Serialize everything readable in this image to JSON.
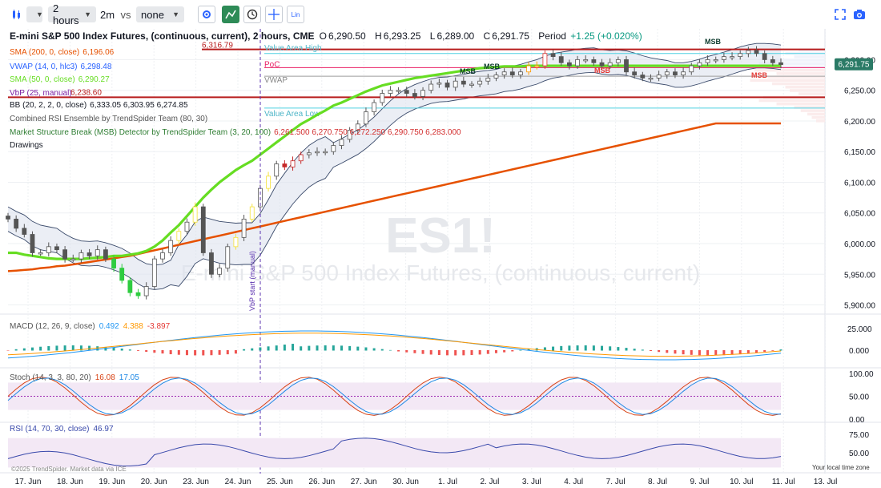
{
  "toolbar": {
    "interval": "2 hours",
    "timeframe": "2m",
    "vs_label": "vs",
    "compare": "none",
    "lin_label": "Lin"
  },
  "title": "E-mini S&P 500 Index Futures, (continuous, current), 2 hours, CME",
  "ohlc": {
    "o_label": "O",
    "o": "6,290.50",
    "h_label": "H",
    "h": "6,293.25",
    "l_label": "L",
    "l": "6,289.00",
    "c_label": "C",
    "c": "6,291.75",
    "period_label": "Period",
    "period": "+1.25 (+0.020%)"
  },
  "indicators": [
    {
      "label": "SMA (200, 0, close)",
      "value": "6,196.06",
      "color": "#e65100"
    },
    {
      "label": "VWAP (14, 0, hlc3)",
      "value": "6,298.48",
      "color": "#2962ff"
    },
    {
      "label": "SMA (50, 0, close)",
      "value": "6,290.27",
      "color": "#66dd22"
    },
    {
      "label": "VbP (25, manual)",
      "value": "",
      "color": "#7b1fa2"
    },
    {
      "label": "BB (20, 2, 2, 0, close)",
      "value": "6,333.05  6,303.95  6,274.85",
      "color": "#131722"
    },
    {
      "label": "Combined RSI Ensemble by TrendSpider Team (80, 30)",
      "value": "",
      "color": "#555"
    },
    {
      "label": "Market Structure Break (MSB) Detector by TrendSpider Team (3, 20, 100)",
      "value": "6,261.500  6,270.750  6,272.250  6,290.750  6,283.000",
      "color": "#2e7d32",
      "value_color": "#d32f2f"
    },
    {
      "label": "Drawings",
      "value": "",
      "color": "#131722"
    }
  ],
  "watermark": {
    "ticker": "ES1!",
    "name": "E-mini S&P 500 Index Futures, (continuous, current)"
  },
  "level_labels": {
    "top": "6,316.79",
    "lower": "6,238.60",
    "high": "Value Area High",
    "poc": "PoC",
    "vwap": "VWAP",
    "low": "Value Area Low"
  },
  "msb_labels": [
    "MSB",
    "MSB",
    "MSB",
    "MSB",
    "MSB"
  ],
  "vbp_start": "VbP start (manual)",
  "price_badge": "6,291.75",
  "panes": {
    "macd": {
      "label": "MACD (12, 26, 9, close)",
      "v1": "0.492",
      "v2": "4.388",
      "v3": "-3.897"
    },
    "stoch": {
      "label": "Stoch (14, 3, 3, 80, 20)",
      "v1": "16.08",
      "v2": "17.05"
    },
    "rsi": {
      "label": "RSI (14, 70, 30, close)",
      "v1": "46.97"
    }
  },
  "footer": {
    "copyright": "©2025 TrendSpider. Market data via ICE",
    "local_time": "Your local time zone"
  },
  "chart_data": {
    "type": "line",
    "title": "E-mini S&P 500 Index Futures, (continuous, current), 2 hours, CME",
    "x_ticks": [
      "17. Jun",
      "18. Jun",
      "19. Jun",
      "20. Jun",
      "23. Jun",
      "24. Jun",
      "25. Jun",
      "26. Jun",
      "27. Jun",
      "30. Jun",
      "1. Jul",
      "2. Jul",
      "3. Jul",
      "4. Jul",
      "7. Jul",
      "8. Jul",
      "9. Jul",
      "10. Jul",
      "11. Jul",
      "13. Jul"
    ],
    "price_ticks": [
      "6,300.00",
      "6,250.00",
      "6,200.00",
      "6,150.00",
      "6,100.00",
      "6,050.00",
      "6,000.00",
      "5,950.00",
      "5,900.00"
    ],
    "price_ticks_values": [
      6300,
      6250,
      6200,
      6150,
      6100,
      6050,
      6000,
      5950,
      5900
    ],
    "ylim": [
      5885,
      6345
    ],
    "macd_ticks": [
      "25.000",
      "0.000"
    ],
    "stoch_ticks": [
      "100.00",
      "50.00",
      "0.00"
    ],
    "rsi_ticks": [
      "75.00",
      "50.00"
    ],
    "levels": {
      "top": 6316.79,
      "value_area_high": 6310,
      "poc": 6287,
      "vwap": 6273,
      "lower": 6238.6,
      "value_area_low": 6221
    },
    "series": [
      {
        "name": "Close",
        "values": [
          6040,
          6025,
          6015,
          5985,
          5985,
          5995,
          5990,
          5975,
          5975,
          5985,
          5980,
          5990,
          5975,
          5960,
          5940,
          5920,
          5915,
          5930,
          5975,
          5985,
          6005,
          6020,
          6035,
          6060,
          5985,
          5950,
          5960,
          5995,
          6010,
          6040,
          6060,
          6090,
          6110,
          6130,
          6125,
          6135,
          6145,
          6148,
          6150,
          6150,
          6160,
          6170,
          6185,
          6195,
          6215,
          6230,
          6245,
          6250,
          6250,
          6245,
          6240,
          6250,
          6260,
          6262,
          6255,
          6265,
          6260,
          6260,
          6265,
          6270,
          6275,
          6280,
          6275,
          6280,
          6290,
          6290,
          6310,
          6305,
          6295,
          6290,
          6300,
          6300,
          6295,
          6290,
          6295,
          6300,
          6280,
          6275,
          6270,
          6270,
          6275,
          6280,
          6275,
          6280,
          6290,
          6295,
          6300,
          6300,
          6305,
          6305,
          6310,
          6315,
          6310,
          6300,
          6295,
          6292
        ]
      },
      {
        "name": "SMA (50, 0, close)",
        "values": [
          5985,
          5985,
          5982,
          5980,
          5978,
          5976,
          5975,
          5975,
          5975,
          5975,
          5976,
          5977,
          5978,
          5980,
          5980,
          5982,
          5984,
          5988,
          5995,
          6005,
          6018,
          6030,
          6045,
          6060,
          6075,
          6088,
          6100,
          6110,
          6120,
          6128,
          6135,
          6145,
          6155,
          6165,
          6175,
          6185,
          6195,
          6202,
          6210,
          6217,
          6225,
          6230,
          6236,
          6242,
          6248,
          6253,
          6258,
          6261,
          6264,
          6267,
          6270,
          6272,
          6274,
          6276,
          6278,
          6280,
          6282,
          6284,
          6286,
          6287,
          6288,
          6289,
          6289,
          6289,
          6290,
          6290,
          6290,
          6290,
          6290,
          6290,
          6290,
          6290,
          6290,
          6290,
          6290,
          6290,
          6290,
          6290,
          6290,
          6290,
          6290,
          6290,
          6290,
          6290,
          6290,
          6290,
          6290,
          6290,
          6290,
          6290,
          6290,
          6290,
          6290,
          6290,
          6290,
          6290
        ]
      },
      {
        "name": "SMA (200, 0, close)",
        "values": [
          5955,
          5956,
          5957,
          5958,
          5960,
          5961,
          5963,
          5964,
          5966,
          5968,
          5970,
          5972,
          5974,
          5976,
          5978,
          5980,
          5983,
          5986,
          5989,
          5992,
          5995,
          5998,
          6001,
          6004,
          6007,
          6010,
          6013,
          6016,
          6019,
          6022,
          6025,
          6028,
          6031,
          6034,
          6037,
          6040,
          6043,
          6046,
          6049,
          6052,
          6055,
          6058,
          6061,
          6064,
          6067,
          6070,
          6073,
          6076,
          6079,
          6082,
          6085,
          6088,
          6091,
          6094,
          6097,
          6100,
          6103,
          6106,
          6109,
          6112,
          6115,
          6118,
          6121,
          6124,
          6127,
          6130,
          6133,
          6136,
          6139,
          6142,
          6145,
          6148,
          6151,
          6154,
          6157,
          6160,
          6163,
          6166,
          6169,
          6172,
          6175,
          6178,
          6181,
          6184,
          6187,
          6190,
          6193,
          6196,
          6196,
          6196,
          6196,
          6196,
          6196,
          6196,
          6196,
          6196
        ]
      }
    ]
  }
}
